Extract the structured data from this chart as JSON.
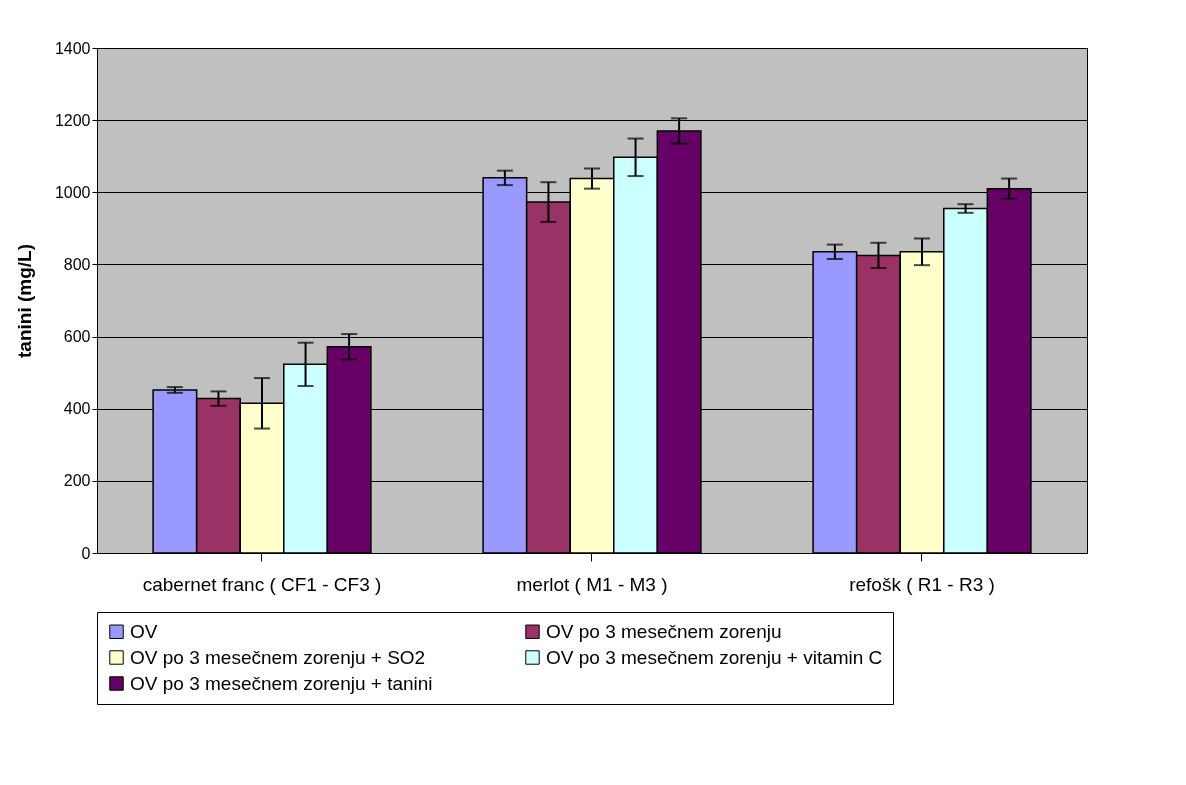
{
  "chart_data": {
    "type": "bar",
    "ylabel": "tanini (mg/L)",
    "categories": [
      "cabernet franc ( CF1 - CF3 )",
      "merlot ( M1 - M3 )",
      "refošk ( R1 - R3 )"
    ],
    "series": [
      {
        "name": "OV",
        "color": "#9999ff",
        "values": [
          452,
          1040,
          835
        ],
        "errors": [
          8,
          20,
          20
        ]
      },
      {
        "name": "OV po 3 mesečnem zorenju",
        "color": "#993366",
        "values": [
          428,
          973,
          825
        ],
        "errors": [
          20,
          55,
          35
        ]
      },
      {
        "name": "OV po 3 mesečnem zorenju + SO2",
        "color": "#ffffcc",
        "values": [
          415,
          1038,
          835
        ],
        "errors": [
          70,
          28,
          37
        ]
      },
      {
        "name": "OV po 3 mesečnem zorenju + vitamin C",
        "color": "#ccffff",
        "values": [
          523,
          1097,
          955
        ],
        "errors": [
          60,
          52,
          12
        ]
      },
      {
        "name": "OV po 3 mesečnem zorenju + tanini",
        "color": "#660066",
        "values": [
          572,
          1170,
          1010
        ],
        "errors": [
          35,
          35,
          28
        ]
      }
    ],
    "ylim": [
      0,
      1400
    ],
    "yticks": [
      0,
      200,
      400,
      600,
      800,
      1000,
      1200,
      1400
    ],
    "grid": "y",
    "legend": "bottom"
  }
}
